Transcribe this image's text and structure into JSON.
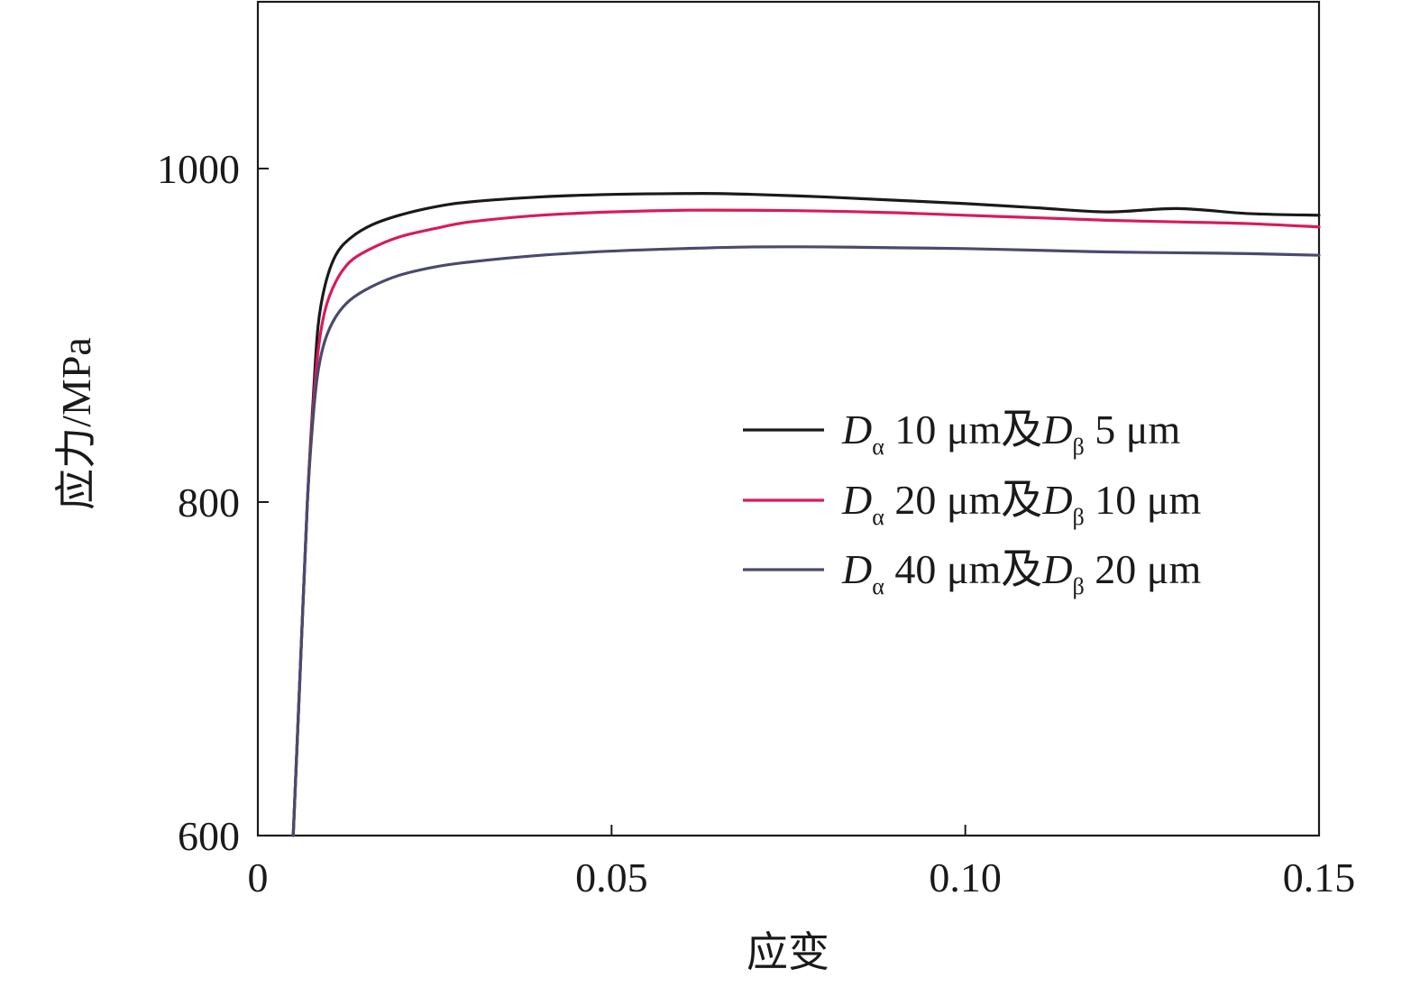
{
  "chart_data": {
    "type": "line",
    "title": "",
    "xlabel": "应变",
    "ylabel": "应力/MPa",
    "xlim": [
      0,
      0.15
    ],
    "ylim": [
      600,
      1100
    ],
    "x_ticks": [
      0,
      0.05,
      0.1,
      0.15
    ],
    "x_tick_labels": [
      "0",
      "0.05",
      "0.10",
      "0.15"
    ],
    "y_ticks": [
      600,
      800,
      1000
    ],
    "y_tick_labels": [
      "600",
      "800",
      "1000"
    ],
    "grid": false,
    "legend_position": "right",
    "series": [
      {
        "name": "Dα 10 μm及Dβ 5 μm",
        "legend": {
          "d1": "D",
          "s1": "α",
          "mid": " 10 μm及",
          "d2": "D",
          "s2": "β",
          "tail": " 5 μm"
        },
        "color": "#1a1a1a",
        "x": [
          0.005,
          0.006,
          0.007,
          0.0078,
          0.0085,
          0.0095,
          0.011,
          0.013,
          0.016,
          0.02,
          0.025,
          0.03,
          0.04,
          0.05,
          0.06,
          0.065,
          0.07,
          0.08,
          0.09,
          0.1,
          0.11,
          0.12,
          0.13,
          0.14,
          0.15
        ],
        "y": [
          600,
          700,
          800,
          860,
          905,
          930,
          948,
          958,
          966,
          972,
          977,
          980,
          983,
          984.5,
          985,
          985,
          984.5,
          983,
          981,
          979,
          976.5,
          974,
          976,
          973,
          972
        ]
      },
      {
        "name": "Dα 20 μm及Dβ 10 μm",
        "legend": {
          "d1": "D",
          "s1": "α",
          "mid": " 20 μm及",
          "d2": "D",
          "s2": "β",
          "tail": " 10 μm"
        },
        "color": "#d81b5a",
        "x": [
          0.005,
          0.006,
          0.007,
          0.0078,
          0.0085,
          0.0095,
          0.011,
          0.013,
          0.016,
          0.02,
          0.025,
          0.03,
          0.04,
          0.05,
          0.06,
          0.07,
          0.08,
          0.09,
          0.1,
          0.11,
          0.12,
          0.13,
          0.14,
          0.15
        ],
        "y": [
          600,
          700,
          800,
          855,
          890,
          915,
          932,
          944,
          952,
          959,
          964,
          968,
          972,
          974,
          975,
          975,
          974.5,
          973.5,
          972,
          970.5,
          969,
          968,
          967,
          965
        ]
      },
      {
        "name": "Dα 40 μm及Dβ 20 μm",
        "legend": {
          "d1": "D",
          "s1": "α",
          "mid": " 40 μm及",
          "d2": "D",
          "s2": "β",
          "tail": " 20 μm"
        },
        "color": "#4a4a6e",
        "x": [
          0.005,
          0.006,
          0.007,
          0.0078,
          0.0085,
          0.0095,
          0.011,
          0.013,
          0.016,
          0.02,
          0.025,
          0.03,
          0.04,
          0.05,
          0.06,
          0.07,
          0.08,
          0.09,
          0.1,
          0.11,
          0.12,
          0.13,
          0.14,
          0.15
        ],
        "y": [
          600,
          700,
          800,
          850,
          878,
          897,
          911,
          921,
          929,
          936,
          941,
          944,
          948,
          950.5,
          952,
          953,
          953,
          952.5,
          952,
          951,
          950,
          949.5,
          949,
          948
        ]
      }
    ]
  }
}
